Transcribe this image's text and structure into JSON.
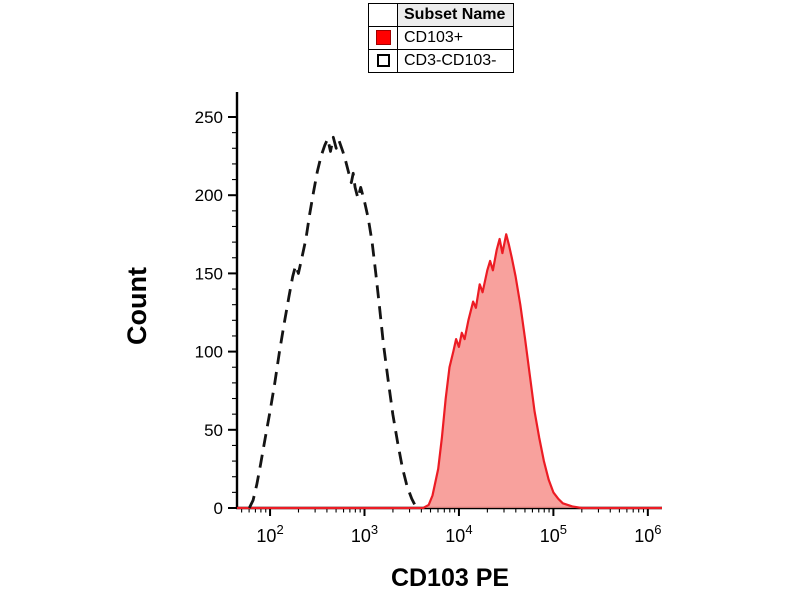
{
  "legend": {
    "header": "Subset Name",
    "entries": [
      {
        "name": "CD103+",
        "swatch_fill": "#ff0000",
        "swatch_border": "#a00000",
        "filled": true
      },
      {
        "name": "CD3-CD103-",
        "swatch_fill": "#ffffff",
        "swatch_border": "#000000",
        "filled": false
      }
    ]
  },
  "chart_data": {
    "type": "area",
    "title": "",
    "xlabel": "CD103 PE",
    "ylabel": "Count",
    "x_scale": "log10",
    "x_range_log10": [
      1.65,
      6.15
    ],
    "x_major_ticks_exponents": [
      2,
      3,
      4,
      5,
      6
    ],
    "ylim": [
      0,
      250
    ],
    "y_major_ticks": [
      0,
      50,
      100,
      150,
      200,
      250
    ],
    "y_minor_step": 10,
    "grid": false,
    "legend_position": "top-center",
    "series": [
      {
        "name": "CD103+",
        "style": "solid-filled",
        "stroke": "#ec1c24",
        "stroke_width": 2.2,
        "fill": "#f7908c",
        "fill_opacity": 0.85,
        "peak_count": 175,
        "peak_x_log10": 4.5,
        "points": [
          [
            1.65,
            0
          ],
          [
            3.55,
            0
          ],
          [
            3.62,
            0
          ],
          [
            3.68,
            2
          ],
          [
            3.72,
            8
          ],
          [
            3.78,
            25
          ],
          [
            3.82,
            45
          ],
          [
            3.86,
            70
          ],
          [
            3.9,
            90
          ],
          [
            3.94,
            100
          ],
          [
            3.97,
            108
          ],
          [
            4.0,
            103
          ],
          [
            4.03,
            112
          ],
          [
            4.06,
            108
          ],
          [
            4.1,
            120
          ],
          [
            4.15,
            132
          ],
          [
            4.18,
            128
          ],
          [
            4.22,
            143
          ],
          [
            4.25,
            138
          ],
          [
            4.3,
            152
          ],
          [
            4.33,
            158
          ],
          [
            4.36,
            152
          ],
          [
            4.4,
            165
          ],
          [
            4.43,
            172
          ],
          [
            4.46,
            163
          ],
          [
            4.5,
            175
          ],
          [
            4.53,
            168
          ],
          [
            4.56,
            160
          ],
          [
            4.6,
            148
          ],
          [
            4.65,
            130
          ],
          [
            4.7,
            108
          ],
          [
            4.75,
            85
          ],
          [
            4.8,
            62
          ],
          [
            4.85,
            45
          ],
          [
            4.9,
            30
          ],
          [
            4.95,
            18
          ],
          [
            5.0,
            10
          ],
          [
            5.05,
            6
          ],
          [
            5.1,
            3
          ],
          [
            5.2,
            1
          ],
          [
            5.3,
            0
          ],
          [
            6.15,
            0
          ]
        ]
      },
      {
        "name": "CD3-CD103-",
        "style": "dashed",
        "stroke": "#141414",
        "stroke_width": 2.8,
        "dash": "13 8",
        "fill": "none",
        "peak_count": 237,
        "peak_x_log10": 2.67,
        "points": [
          [
            1.78,
            0
          ],
          [
            1.82,
            5
          ],
          [
            1.86,
            15
          ],
          [
            1.9,
            28
          ],
          [
            1.95,
            45
          ],
          [
            2.0,
            62
          ],
          [
            2.05,
            80
          ],
          [
            2.1,
            100
          ],
          [
            2.15,
            118
          ],
          [
            2.2,
            135
          ],
          [
            2.24,
            148
          ],
          [
            2.27,
            155
          ],
          [
            2.3,
            150
          ],
          [
            2.33,
            158
          ],
          [
            2.38,
            172
          ],
          [
            2.42,
            188
          ],
          [
            2.46,
            202
          ],
          [
            2.5,
            215
          ],
          [
            2.54,
            225
          ],
          [
            2.58,
            232
          ],
          [
            2.61,
            236
          ],
          [
            2.64,
            228
          ],
          [
            2.67,
            237
          ],
          [
            2.7,
            230
          ],
          [
            2.73,
            235
          ],
          [
            2.77,
            228
          ],
          [
            2.8,
            222
          ],
          [
            2.83,
            215
          ],
          [
            2.86,
            208
          ],
          [
            2.88,
            214
          ],
          [
            2.9,
            205
          ],
          [
            2.93,
            198
          ],
          [
            2.96,
            205
          ],
          [
            3.0,
            196
          ],
          [
            3.04,
            185
          ],
          [
            3.08,
            170
          ],
          [
            3.12,
            150
          ],
          [
            3.16,
            128
          ],
          [
            3.2,
            105
          ],
          [
            3.25,
            82
          ],
          [
            3.3,
            60
          ],
          [
            3.35,
            42
          ],
          [
            3.4,
            26
          ],
          [
            3.45,
            14
          ],
          [
            3.5,
            6
          ],
          [
            3.55,
            0
          ]
        ]
      }
    ]
  }
}
